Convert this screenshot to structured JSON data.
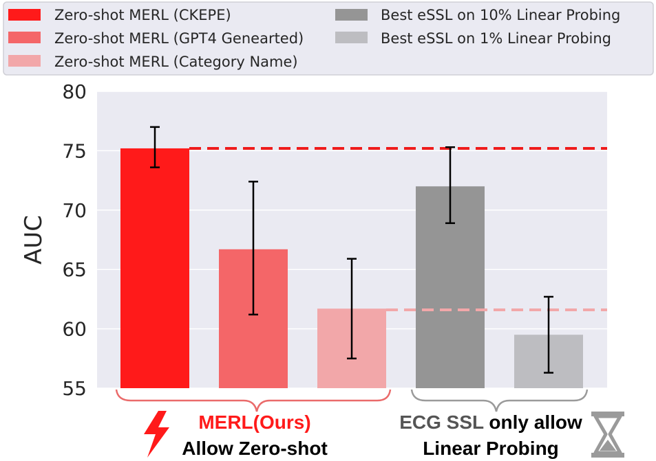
{
  "chart_data": {
    "type": "bar",
    "title": "",
    "xlabel": "",
    "ylabel": "AUC",
    "ylim": [
      55,
      80
    ],
    "yticks": [
      55,
      60,
      65,
      70,
      75,
      80
    ],
    "grid": true,
    "legend_position": "top",
    "series": [
      {
        "name": "Zero-shot MERL (CKEPE)",
        "value": 75.2,
        "error_low": 73.6,
        "error_high": 77.0,
        "color": "#ff1a1a"
      },
      {
        "name": "Zero-shot MERL (GPT4 Genearted)",
        "value": 66.7,
        "error_low": 61.2,
        "error_high": 72.4,
        "color": "#f46668"
      },
      {
        "name": "Zero-shot MERL (Category Name)",
        "value": 61.7,
        "error_low": 57.5,
        "error_high": 65.9,
        "color": "#f2a7a9"
      },
      {
        "name": "Best eSSL on 10% Linear Probing",
        "value": 72.0,
        "error_low": 68.9,
        "error_high": 75.3,
        "color": "#959595"
      },
      {
        "name": "Best eSSL on 1% Linear Probing",
        "value": 59.5,
        "error_low": 56.3,
        "error_high": 62.7,
        "color": "#bdbdc1"
      }
    ],
    "reference_lines": [
      {
        "value": 75.2,
        "color": "#ef1c1c",
        "style": "dashed"
      },
      {
        "value": 61.6,
        "color": "#f2a7a9",
        "style": "dashed"
      }
    ],
    "groups": [
      {
        "line1": "MERL(Ours)",
        "line2": "Allow Zero-shot",
        "line1_color": "#ff1a1a",
        "line2_color": "#000000",
        "icon": "lightning-icon",
        "bracket_color": "#ea6a6a"
      },
      {
        "line1_a": "ECG SSL",
        "line1_b": " only allow",
        "line2": "Linear Probing",
        "line1_a_color": "#555555",
        "line1_b_color": "#000000",
        "line2_color": "#000000",
        "icon": "hourglass-icon",
        "bracket_color": "#9a9a9a"
      }
    ]
  }
}
